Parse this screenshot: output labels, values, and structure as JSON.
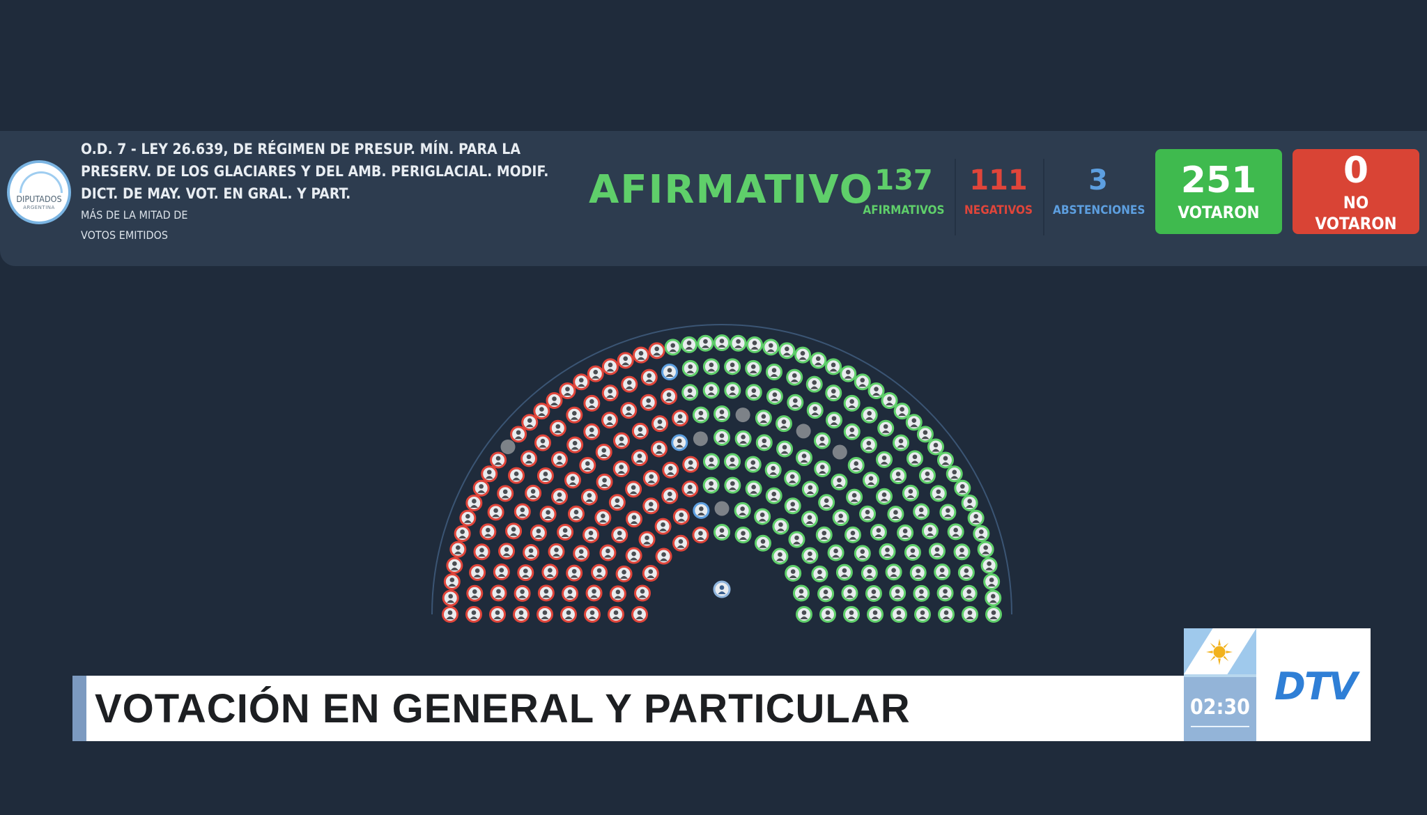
{
  "header": {
    "logo": {
      "name": "DIPUTADOS",
      "sub": "ARGENTINA"
    },
    "title_lines": [
      "O.D. 7 - LEY 26.639, DE RÉGIMEN DE PRESUP. MÍN. PARA LA",
      "PRESERV. DE LOS GLACIARES Y DEL AMB. PERIGLACIAL. MODIF.",
      "DICT. DE MAY. VOT. EN GRAL. Y PART."
    ],
    "majority_lines": [
      "MÁS DE LA MITAD DE",
      "VOTOS EMITIDOS"
    ],
    "result": "AFIRMATIVO",
    "result_color": "#5fcf6a",
    "stats": [
      {
        "value": "137",
        "label": "AFIRMATIVOS",
        "color": "#5fcf6a"
      },
      {
        "value": "111",
        "label": "NEGATIVOS",
        "color": "#e0453a"
      },
      {
        "value": "3",
        "label": "ABSTENCIONES",
        "color": "#5d9fe0"
      }
    ],
    "votaron": {
      "value": "251",
      "label": "VOTARON",
      "color": "#3fba4e"
    },
    "no_votaron": {
      "value": "0",
      "label_lines": [
        "NO",
        "VOTARON"
      ],
      "color": "#d94435"
    }
  },
  "chamber": {
    "seats_total": 257,
    "colors": {
      "afirmativo": "#5fcf6a",
      "negativo": "#e0453a",
      "abstencion": "#5d9fe0",
      "ausente": "#7d8288",
      "presidente": "#8fb5dd"
    },
    "counts": {
      "afirmativo": 137,
      "negativo": 111,
      "abstencion": 3,
      "ausente": 6
    }
  },
  "lower_third": {
    "title": "VOTACIÓN EN GENERAL Y PARTICULAR",
    "clock": "02:30",
    "channel_logo": "DTV"
  }
}
